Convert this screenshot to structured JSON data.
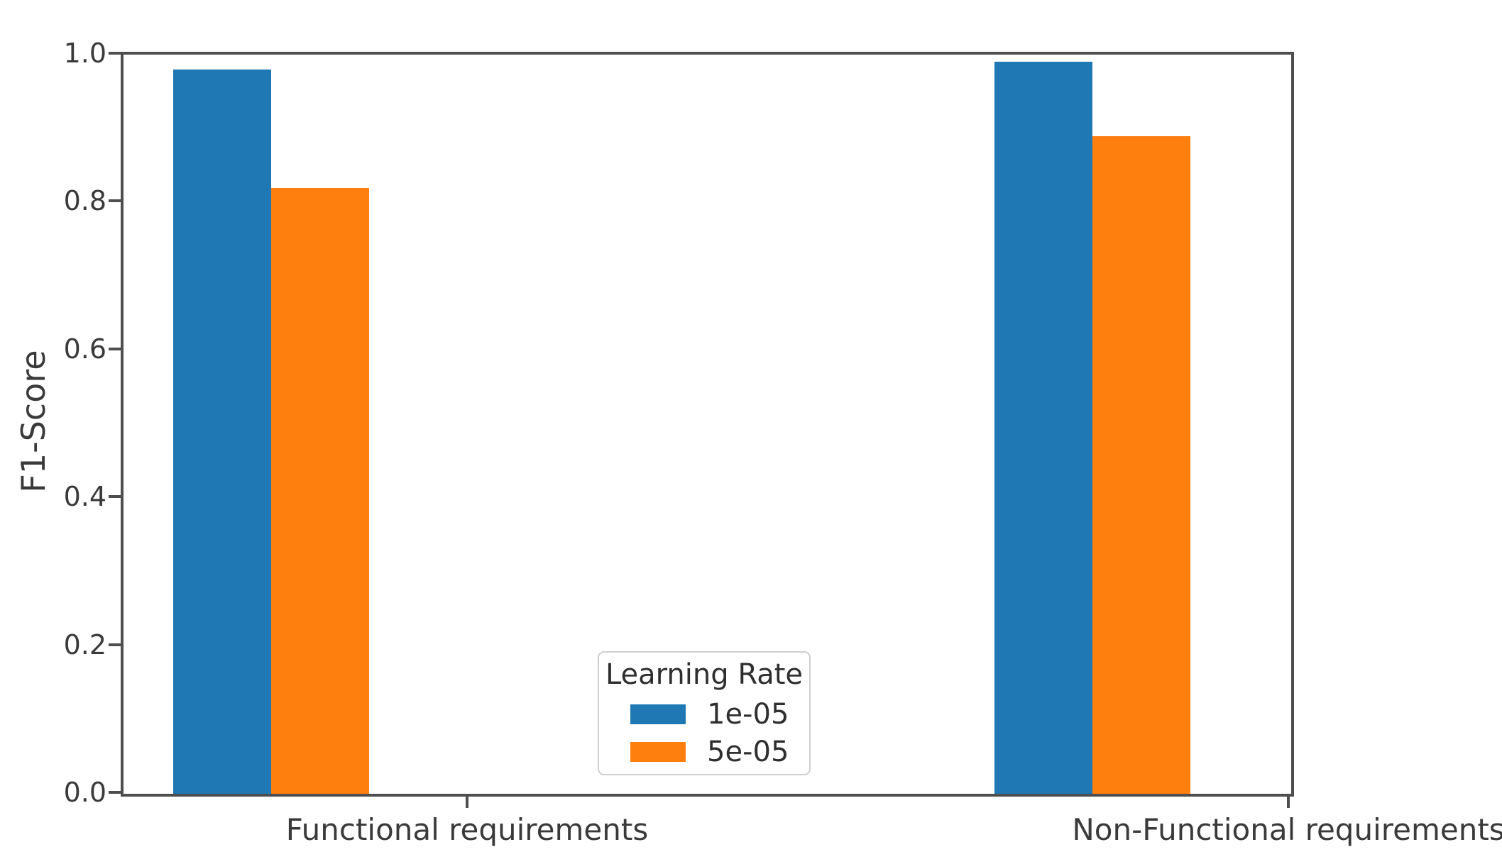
{
  "chart_data": {
    "type": "bar",
    "title": "",
    "xlabel": "",
    "ylabel": "F1-Score",
    "categories": [
      "Functional requirements",
      "Non-Functional requirements"
    ],
    "series": [
      {
        "name": "1e-05",
        "color": "#1f77b4",
        "values": [
          0.98,
          0.99
        ]
      },
      {
        "name": "5e-05",
        "color": "#ff7f0e",
        "values": [
          0.82,
          0.89
        ]
      }
    ],
    "ylim": [
      0.0,
      1.0
    ],
    "yticks": [
      0.0,
      0.2,
      0.4,
      0.6,
      0.8,
      1.0
    ],
    "ytick_labels": [
      "0.0",
      "0.2",
      "0.4",
      "0.6",
      "0.8",
      "1.0"
    ],
    "grid": false,
    "legend": {
      "title": "Learning Rate",
      "position": "lower center"
    },
    "axis_color": "#4e4e4e",
    "text_color": "#3a3a3a"
  }
}
